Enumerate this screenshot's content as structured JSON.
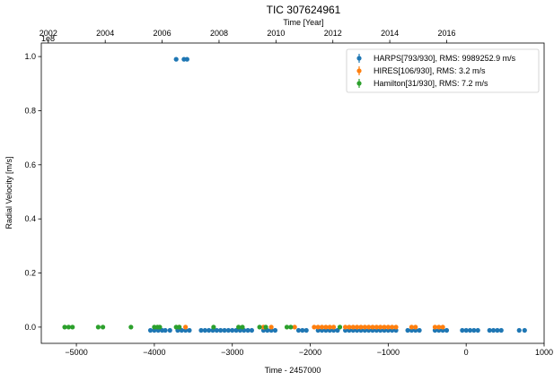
{
  "chart_data": {
    "type": "scatter",
    "title": "TIC 307624961",
    "xlabel": "Time - 2457000",
    "ylabel": "Radial Velocity [m/s]",
    "top_xlabel": "Time [Year]",
    "y_offset_label": "1e8",
    "xlim": [
      -5450,
      1000
    ],
    "ylim": [
      -0.06,
      1.05
    ],
    "y_scale": 100000000,
    "grid": false,
    "legend_position": "top-right",
    "x_ticks": [
      -5000,
      -4000,
      -3000,
      -2000,
      -1000,
      0,
      1000
    ],
    "y_ticks": [
      0.0,
      0.2,
      0.4,
      0.6,
      0.8,
      1.0
    ],
    "year_ticks": [
      {
        "label": "2002",
        "x": -5360
      },
      {
        "label": "2004",
        "x": -4630
      },
      {
        "label": "2006",
        "x": -3900
      },
      {
        "label": "2008",
        "x": -3170
      },
      {
        "label": "2010",
        "x": -2440
      },
      {
        "label": "2012",
        "x": -1710
      },
      {
        "label": "2014",
        "x": -980
      },
      {
        "label": "2016",
        "x": -250
      }
    ],
    "series": [
      {
        "name": "HARPS[793/930], RMS: 9989252.9 m/s",
        "color": "#1f77b4",
        "points": [
          [
            -4050,
            -0.012
          ],
          [
            -4000,
            -0.012
          ],
          [
            -3950,
            -0.012
          ],
          [
            -3900,
            -0.012
          ],
          [
            -3860,
            -0.012
          ],
          [
            -3800,
            -0.012
          ],
          [
            -3720,
            0.99
          ],
          [
            -3620,
            0.99
          ],
          [
            -3580,
            0.99
          ],
          [
            -3700,
            -0.012
          ],
          [
            -3650,
            -0.012
          ],
          [
            -3600,
            -0.012
          ],
          [
            -3550,
            -0.012
          ],
          [
            -3400,
            -0.012
          ],
          [
            -3350,
            -0.012
          ],
          [
            -3300,
            -0.012
          ],
          [
            -3250,
            -0.012
          ],
          [
            -3200,
            -0.012
          ],
          [
            -3150,
            -0.012
          ],
          [
            -3100,
            -0.012
          ],
          [
            -3050,
            -0.012
          ],
          [
            -3000,
            -0.012
          ],
          [
            -2950,
            -0.012
          ],
          [
            -2900,
            -0.012
          ],
          [
            -2850,
            -0.012
          ],
          [
            -2800,
            -0.012
          ],
          [
            -2750,
            -0.012
          ],
          [
            -2600,
            -0.012
          ],
          [
            -2550,
            -0.012
          ],
          [
            -2500,
            -0.012
          ],
          [
            -2450,
            -0.012
          ],
          [
            -2150,
            -0.012
          ],
          [
            -2100,
            -0.012
          ],
          [
            -2050,
            -0.012
          ],
          [
            -1900,
            -0.012
          ],
          [
            -1850,
            -0.012
          ],
          [
            -1800,
            -0.012
          ],
          [
            -1750,
            -0.012
          ],
          [
            -1700,
            -0.012
          ],
          [
            -1650,
            -0.012
          ],
          [
            -1550,
            -0.012
          ],
          [
            -1500,
            -0.012
          ],
          [
            -1450,
            -0.012
          ],
          [
            -1400,
            -0.012
          ],
          [
            -1350,
            -0.012
          ],
          [
            -1300,
            -0.012
          ],
          [
            -1250,
            -0.012
          ],
          [
            -1200,
            -0.012
          ],
          [
            -1150,
            -0.012
          ],
          [
            -1100,
            -0.012
          ],
          [
            -1050,
            -0.012
          ],
          [
            -1000,
            -0.012
          ],
          [
            -950,
            -0.012
          ],
          [
            -900,
            -0.012
          ],
          [
            -750,
            -0.012
          ],
          [
            -700,
            -0.012
          ],
          [
            -650,
            -0.012
          ],
          [
            -600,
            -0.012
          ],
          [
            -400,
            -0.012
          ],
          [
            -350,
            -0.012
          ],
          [
            -300,
            -0.012
          ],
          [
            -250,
            -0.012
          ],
          [
            -50,
            -0.012
          ],
          [
            0,
            -0.012
          ],
          [
            50,
            -0.012
          ],
          [
            100,
            -0.012
          ],
          [
            150,
            -0.012
          ],
          [
            300,
            -0.012
          ],
          [
            350,
            -0.012
          ],
          [
            400,
            -0.012
          ],
          [
            450,
            -0.012
          ],
          [
            680,
            -0.012
          ],
          [
            750,
            -0.012
          ]
        ]
      },
      {
        "name": "HIRES[106/930], RMS: 3.2 m/s",
        "color": "#ff7f0e",
        "points": [
          [
            -3680,
            0.0
          ],
          [
            -3600,
            0.0
          ],
          [
            -2600,
            0.0
          ],
          [
            -2500,
            0.0
          ],
          [
            -2200,
            0.0
          ],
          [
            -1950,
            0.0
          ],
          [
            -1900,
            0.0
          ],
          [
            -1850,
            0.0
          ],
          [
            -1800,
            0.0
          ],
          [
            -1750,
            0.0
          ],
          [
            -1700,
            0.0
          ],
          [
            -1550,
            0.0
          ],
          [
            -1500,
            0.0
          ],
          [
            -1450,
            0.0
          ],
          [
            -1400,
            0.0
          ],
          [
            -1350,
            0.0
          ],
          [
            -1300,
            0.0
          ],
          [
            -1250,
            0.0
          ],
          [
            -1200,
            0.0
          ],
          [
            -1150,
            0.0
          ],
          [
            -1100,
            0.0
          ],
          [
            -1050,
            0.0
          ],
          [
            -1000,
            0.0
          ],
          [
            -950,
            0.0
          ],
          [
            -900,
            0.0
          ],
          [
            -700,
            0.0
          ],
          [
            -650,
            0.0
          ],
          [
            -400,
            0.0
          ],
          [
            -350,
            0.0
          ],
          [
            -300,
            0.0
          ]
        ]
      },
      {
        "name": "Hamilton[31/930], RMS: 7.2 m/s",
        "color": "#2ca02c",
        "points": [
          [
            -5150,
            0.0
          ],
          [
            -5100,
            0.0
          ],
          [
            -5050,
            0.0
          ],
          [
            -4720,
            0.0
          ],
          [
            -4660,
            0.0
          ],
          [
            -4300,
            0.0
          ],
          [
            -4000,
            0.0
          ],
          [
            -3960,
            0.0
          ],
          [
            -3930,
            0.0
          ],
          [
            -3720,
            0.0
          ],
          [
            -3680,
            0.0
          ],
          [
            -3240,
            0.0
          ],
          [
            -2920,
            0.0
          ],
          [
            -2870,
            0.0
          ],
          [
            -2650,
            0.0
          ],
          [
            -2570,
            0.0
          ],
          [
            -2300,
            0.0
          ],
          [
            -2250,
            0.0
          ],
          [
            -1620,
            0.0
          ]
        ]
      }
    ]
  }
}
